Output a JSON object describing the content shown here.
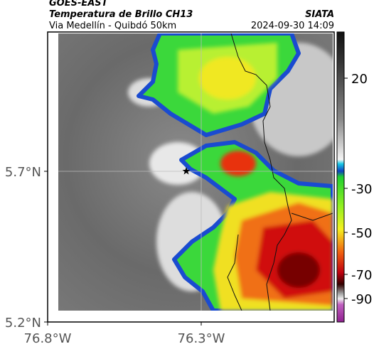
{
  "header": {
    "title": "GOES-EAST",
    "subtitle": "Temperatura de Brillo CH13",
    "source": "SIATA",
    "location": "Via Medellín - Quibdó 50km",
    "timestamp": "2024-09-30 14:09"
  },
  "map": {
    "lat_labels": [
      "5.7°N",
      "5.2°N"
    ],
    "lon_labels": [
      "76.8°W",
      "76.3°W"
    ]
  },
  "colorbar": {
    "ticks": [
      "20",
      "-30",
      "-50",
      "-70",
      "-90"
    ]
  }
}
